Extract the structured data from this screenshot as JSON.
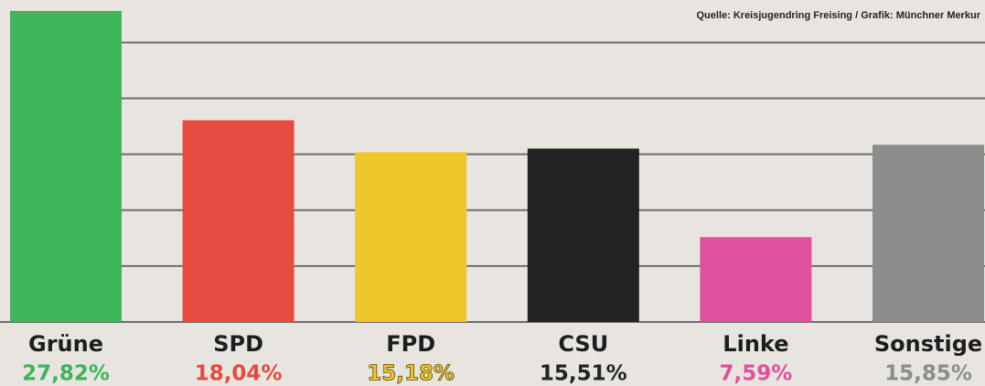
{
  "chart_data": {
    "type": "bar",
    "source": "Quelle: Kreisjugendring Freising / Grafik: Münchner Merkur",
    "categories": [
      "Grüne",
      "SPD",
      "FPD",
      "CSU",
      "Linke",
      "Sonstige"
    ],
    "values": [
      27.82,
      18.04,
      15.18,
      15.51,
      7.59,
      15.85
    ],
    "value_labels": [
      "27,82%",
      "18,04%",
      "15,18%",
      "15,51%",
      "7,59%",
      "15,85%"
    ],
    "colors": [
      "#3db559",
      "#e54b3f",
      "#efc52c",
      "#232323",
      "#e0509c",
      "#8c8c8c"
    ],
    "ylim": [
      0,
      28.8
    ],
    "grid_lines": [
      5,
      10,
      15,
      20,
      25
    ],
    "grid": true
  }
}
